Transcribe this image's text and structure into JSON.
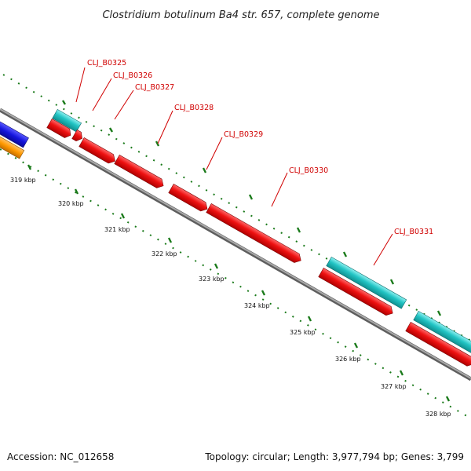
{
  "title": "Clostridium botulinum Ba4 str. 657, complete genome",
  "footer": {
    "accession": "Accession: NC_012658",
    "summary": "Topology: circular; Length: 3,977,794 bp; Genes: 3,799"
  },
  "colors": {
    "backbone": "#8a8a8a",
    "forward_cds": "#ee1111",
    "reverse_cds": "#22c4c4",
    "other_feature_blue": "#1515dd",
    "other_feature_orange": "#ff9900",
    "label": "#d00000",
    "tick": "#1a7a1a"
  },
  "genes": [
    {
      "label": "CLJ_B0325"
    },
    {
      "label": "CLJ_B0326"
    },
    {
      "label": "CLJ_B0327"
    },
    {
      "label": "CLJ_B0328"
    },
    {
      "label": "CLJ_B0329"
    },
    {
      "label": "CLJ_B0330"
    },
    {
      "label": "CLJ_B0331"
    }
  ],
  "ticks": [
    "319 kbp",
    "320 kbp",
    "321 kbp",
    "322 kbp",
    "323 kbp",
    "324 kbp",
    "325 kbp",
    "326 kbp",
    "327 kbp",
    "328 kbp"
  ]
}
